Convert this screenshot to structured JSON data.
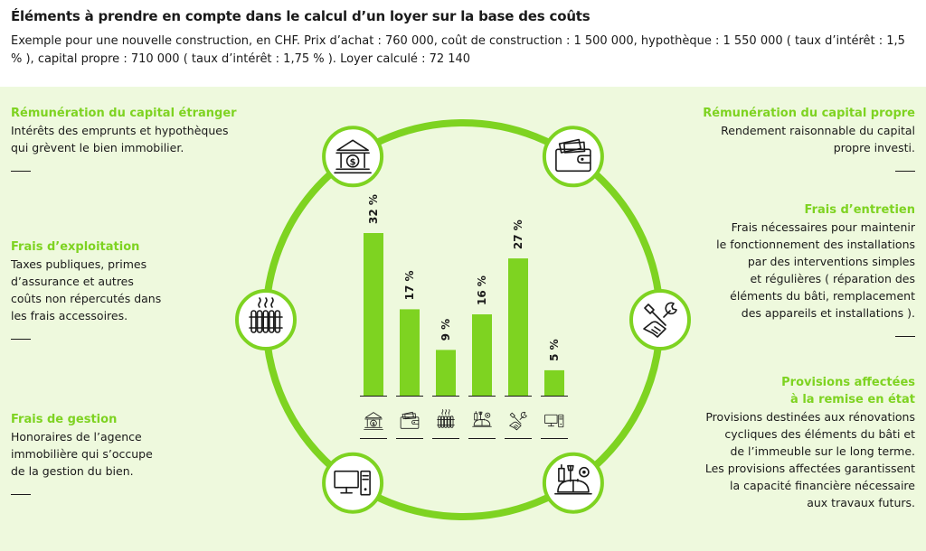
{
  "header": {
    "title": "Éléments à prendre en compte dans le calcul d’un loyer sur la base des coûts",
    "subtitle": "Exemple pour une nouvelle construction, en CHF. Prix d’achat : 760 000, coût de construction : 1 500 000, hypothèque : 1 550 000 ( taux d’intérêt : 1,5 % ), capital propre : 710 000 ( taux d’intérêt : 1,75 % ). Loyer calculé : 72 140"
  },
  "blocks": {
    "capital_etranger": {
      "title": "Rémunération du capital étranger",
      "text": [
        "Intérêts des emprunts et hypothèques",
        "qui grèvent le bien immobilier."
      ]
    },
    "exploitation": {
      "title": "Frais d’exploitation",
      "text": [
        "Taxes publiques, primes",
        "d’assurance et autres",
        "coûts non répercutés dans",
        "les frais accessoires."
      ]
    },
    "gestion": {
      "title": "Frais de gestion",
      "text": [
        "Honoraires de l’agence",
        "immobilière qui s’occupe",
        "de la gestion du bien."
      ]
    },
    "capital_propre": {
      "title": "Rémunération du capital propre",
      "text": [
        "Rendement raisonnable du capital",
        "propre investi."
      ]
    },
    "entretien": {
      "title": "Frais d’entretien",
      "text": [
        "Frais nécessaires pour maintenir",
        "le fonctionnement des installations",
        "par des interventions simples",
        "et régulières ( réparation des",
        "éléments du bâti, remplacement",
        "des appareils et installations )."
      ]
    },
    "provisions": {
      "title_lines": [
        "Provisions affectées",
        "à la remise en état"
      ],
      "text": [
        "Provisions destinées aux rénovations",
        "cycliques des éléments du bâti et",
        "de l’immeuble sur le long terme.",
        "Les provisions affectées garantissent",
        "la capacité financière nécessaire",
        "aux travaux futurs."
      ]
    }
  },
  "colors": {
    "accent": "#7ed321",
    "panel": "#eef9dd",
    "ink": "#1a1a1a"
  },
  "chart_data": {
    "type": "bar",
    "categories": [
      "Rémunération du capital étranger",
      "Rémunération du capital propre",
      "Frais d’exploitation",
      "Provisions affectées à la remise en état",
      "Frais d’entretien",
      "Frais de gestion"
    ],
    "category_icons": [
      "bank-icon",
      "wallet-icon",
      "radiator-icon",
      "tools-helmet-icon",
      "wrench-hand-icon",
      "computer-icon"
    ],
    "values": [
      32,
      17,
      9,
      16,
      27,
      5
    ],
    "value_labels": [
      "32 %",
      "17 %",
      "9 %",
      "16 %",
      "27 %",
      "5 %"
    ],
    "unit": "%",
    "ylim": [
      0,
      32
    ],
    "bar_color": "#7ed321"
  },
  "ring_icons": [
    "bank-icon",
    "wallet-icon",
    "radiator-icon",
    "wrench-hand-icon",
    "computer-icon",
    "tools-helmet-icon"
  ]
}
